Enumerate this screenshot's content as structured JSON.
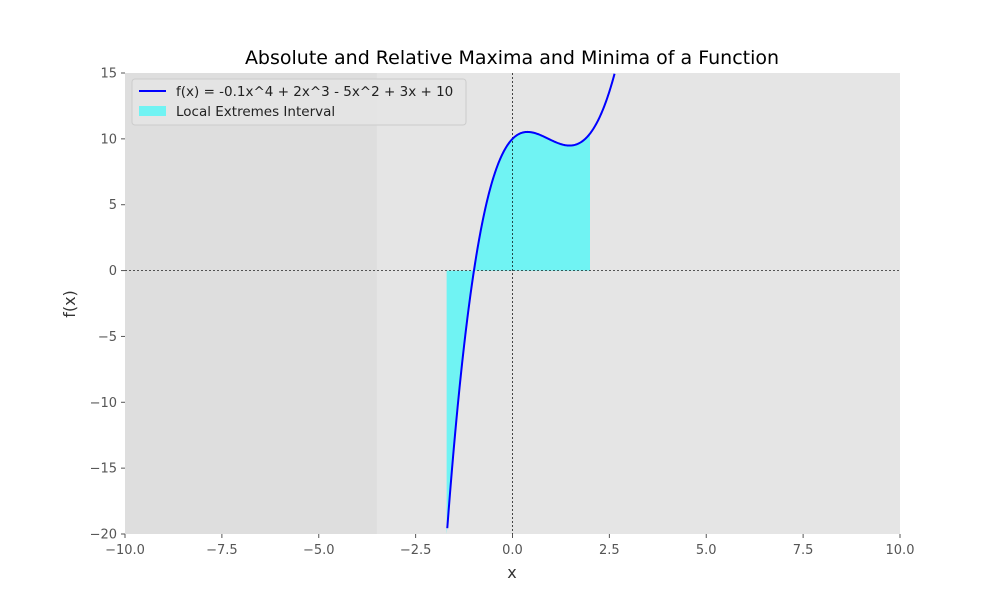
{
  "chart_data": {
    "type": "line",
    "title": "Absolute and Relative Maxima and Minima of a Function",
    "xlabel": "x",
    "ylabel": "f(x)",
    "xlim": [
      -10,
      10
    ],
    "ylim": [
      -20,
      15
    ],
    "xticks": [
      -10,
      -7.5,
      -5,
      -2.5,
      0,
      2.5,
      5,
      7.5,
      10
    ],
    "xtick_labels": [
      "−10.0",
      "−7.5",
      "−5.0",
      "−2.5",
      "0.0",
      "2.5",
      "5.0",
      "7.5",
      "10.0"
    ],
    "yticks": [
      -20,
      -15,
      -10,
      -5,
      0,
      5,
      10,
      15
    ],
    "ytick_labels": [
      "−20",
      "−15",
      "−10",
      "−5",
      "0",
      "5",
      "10",
      "15"
    ],
    "grid": false,
    "reference_lines": {
      "x": 0,
      "y": 0
    },
    "shaded_background_region": {
      "x_from": -10,
      "x_to": -3.5
    },
    "function": {
      "coefficients": {
        "x4": -0.1,
        "x3": 2,
        "x2": -5,
        "x1": 3,
        "x0": 10
      }
    },
    "fill_interval": {
      "x_from": -1.7,
      "x_to": 2
    },
    "series": [
      {
        "name": "f(x) = -0.1x^4 + 2x^3 - 5x^2 + 3x + 10",
        "color": "#0000ff",
        "kind": "line"
      },
      {
        "name": "Local Extremes Interval",
        "color": "#00ffff",
        "kind": "fill"
      }
    ],
    "legend": {
      "position": "top-left"
    },
    "colors": {
      "axes_background": "#e5e5e5",
      "shaded_region": "#dedede",
      "fill": "#70f3f3",
      "line": "#0000ff"
    }
  }
}
